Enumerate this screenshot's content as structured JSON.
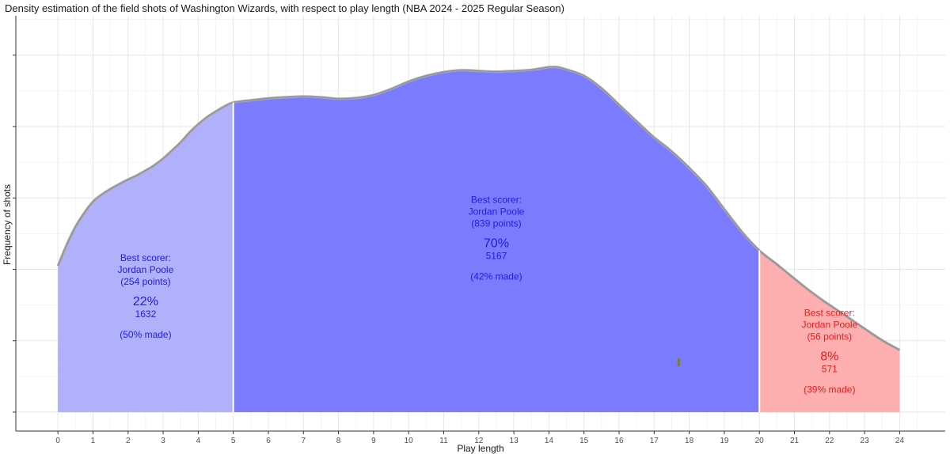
{
  "chart_data": {
    "type": "area",
    "title": "Density estimation of the field shots of Washington Wizards, with respect to play length (NBA 2024 - 2025 Regular Season)",
    "xlabel": "Play length",
    "ylabel": "Frequency of shots",
    "xlim": [
      -1.2,
      25.3
    ],
    "ylim": [
      0,
      1.0
    ],
    "x_ticks": [
      0,
      1,
      2,
      3,
      4,
      5,
      6,
      7,
      8,
      9,
      10,
      11,
      12,
      13,
      14,
      15,
      16,
      17,
      18,
      19,
      20,
      21,
      22,
      23,
      24
    ],
    "grid": true,
    "density": {
      "x": [
        0,
        0.25,
        0.5,
        0.75,
        1,
        1.25,
        1.5,
        1.75,
        2,
        2.25,
        2.5,
        2.75,
        3,
        3.25,
        3.5,
        3.75,
        4,
        4.25,
        4.5,
        4.75,
        5,
        5.5,
        6,
        6.5,
        7,
        7.5,
        8,
        8.5,
        9,
        9.5,
        10,
        10.5,
        11,
        11.5,
        12,
        12.5,
        13,
        13.5,
        14,
        14.25,
        14.5,
        15,
        15.5,
        16,
        16.5,
        17,
        17.5,
        18,
        18.5,
        19,
        19.5,
        20,
        20.5,
        21,
        21.5,
        22,
        22.5,
        23,
        23.5,
        24
      ],
      "y": [
        0.389,
        0.445,
        0.493,
        0.53,
        0.56,
        0.579,
        0.594,
        0.607,
        0.619,
        0.63,
        0.643,
        0.657,
        0.675,
        0.696,
        0.718,
        0.744,
        0.766,
        0.785,
        0.8,
        0.814,
        0.824,
        0.83,
        0.835,
        0.838,
        0.84,
        0.838,
        0.834,
        0.836,
        0.844,
        0.86,
        0.88,
        0.895,
        0.905,
        0.91,
        0.908,
        0.906,
        0.908,
        0.911,
        0.918,
        0.918,
        0.912,
        0.895,
        0.862,
        0.818,
        0.774,
        0.731,
        0.694,
        0.65,
        0.601,
        0.54,
        0.48,
        0.43,
        0.393,
        0.355,
        0.318,
        0.285,
        0.254,
        0.222,
        0.191,
        0.165
      ]
    },
    "segments": [
      {
        "from": 0,
        "to": 5,
        "color": "#b0b0fb",
        "text_color": "#1c1cf2",
        "label": "Best scorer:",
        "player": "Jordan Poole",
        "points": "(254 points)",
        "percent": "22%",
        "count": "1632",
        "made": "(50% made)",
        "label_x": 2.5,
        "label_y_top": 0.402
      },
      {
        "from": 5,
        "to": 20,
        "color": "#7b7bfd",
        "text_color": "#1c1cf2",
        "label": "Best scorer:",
        "player": "Jordan Poole",
        "points": "(839 points)",
        "percent": "70%",
        "count": "5167",
        "made": "(42% made)",
        "label_x": 12.5,
        "label_y_top": 0.557
      },
      {
        "from": 20,
        "to": 24,
        "color": "#fdaeae",
        "text_color": "#f01c1c",
        "label": "Best scorer:",
        "player": "Jordan Poole",
        "points": "(56 points)",
        "percent": "8%",
        "count": "571",
        "made": "(39% made)",
        "label_x": 22.0,
        "label_y_top": 0.256
      }
    ],
    "marker": {
      "x": 17.7,
      "y": 0.133,
      "color": "#7a7d2a"
    }
  }
}
